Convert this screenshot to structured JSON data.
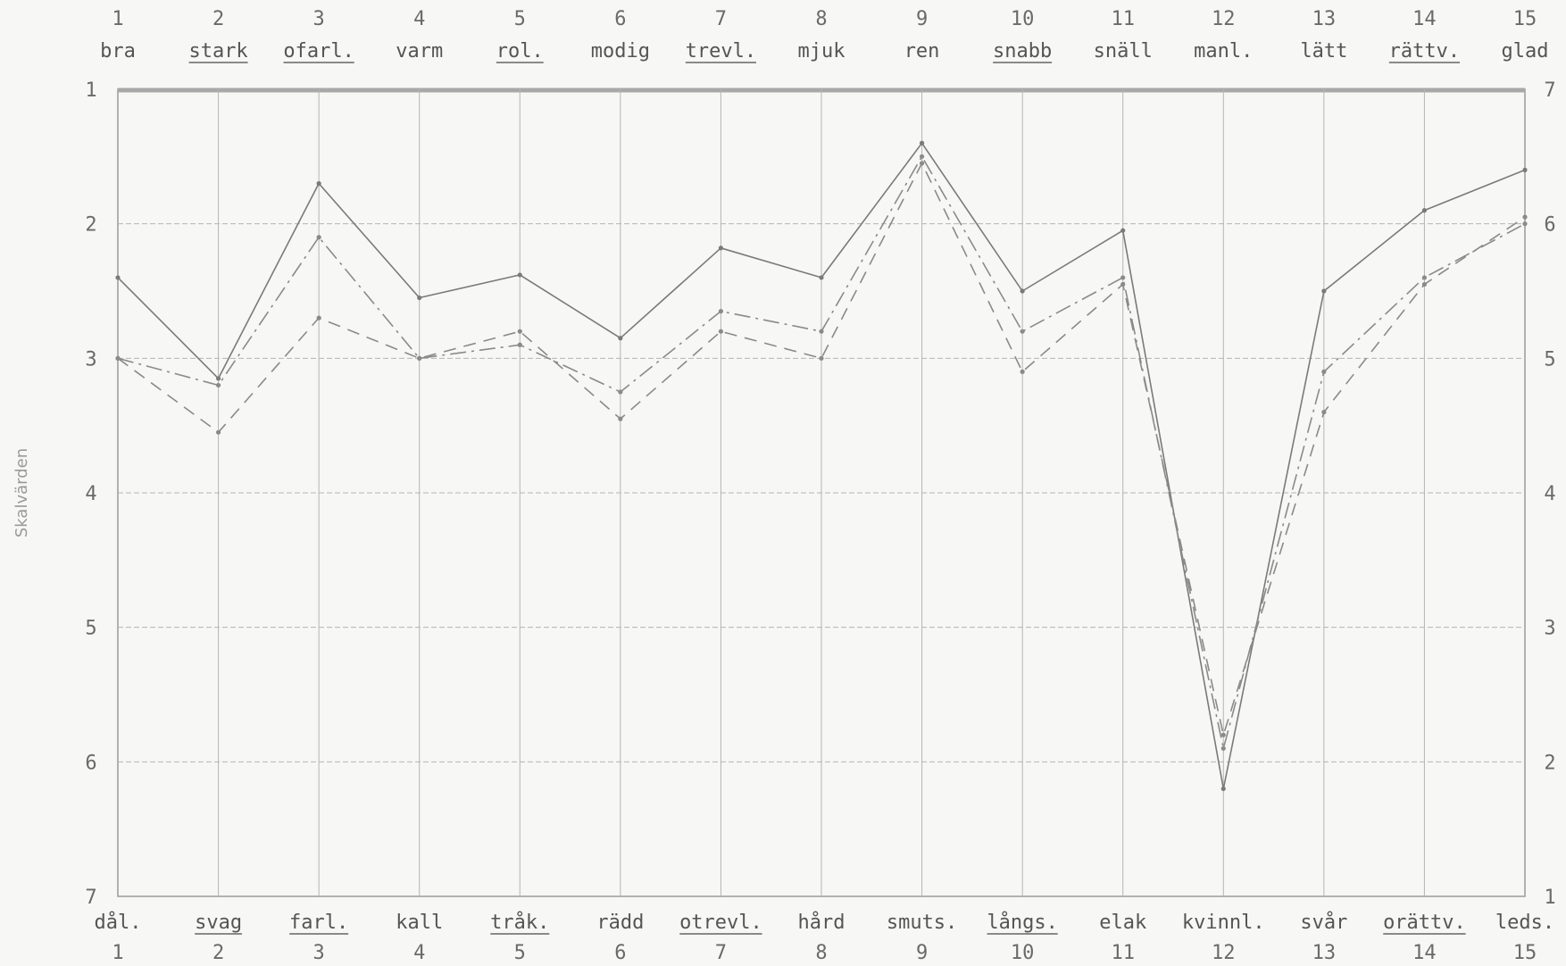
{
  "chart_data": {
    "type": "line",
    "categories": [
      "1",
      "2",
      "3",
      "4",
      "5",
      "6",
      "7",
      "8",
      "9",
      "10",
      "11",
      "12",
      "13",
      "14",
      "15"
    ],
    "top_words": [
      "bra",
      "stark",
      "ofarl.",
      "varm",
      "rol.",
      "modig",
      "trevl.",
      "mjuk",
      "ren",
      "snabb",
      "snäll",
      "manl.",
      "lätt",
      "rättv.",
      "glad"
    ],
    "bottom_words": [
      "dål.",
      "svag",
      "farl.",
      "kall",
      "tråk.",
      "rädd",
      "otrevl.",
      "hård",
      "smuts.",
      "långs.",
      "elak",
      "kvinnl.",
      "svår",
      "orättv.",
      "leds."
    ],
    "underlined": [
      2,
      3,
      5,
      7,
      10,
      14
    ],
    "ylabel": "Skalvärden",
    "left_ticks": [
      "1",
      "2",
      "3",
      "4",
      "5",
      "6",
      "7"
    ],
    "right_ticks": [
      "7",
      "6",
      "5",
      "4",
      "3",
      "2",
      "1"
    ],
    "ylim": [
      1,
      7
    ],
    "series": [
      {
        "style": "solid",
        "color": "#7a7a7a",
        "values": [
          2.4,
          3.15,
          1.7,
          2.55,
          2.38,
          2.85,
          2.18,
          2.4,
          1.4,
          2.5,
          2.05,
          6.2,
          2.5,
          1.9,
          1.6
        ]
      },
      {
        "style": "dash-dot",
        "color": "#8a8a8a",
        "values": [
          3.0,
          3.2,
          2.1,
          3.0,
          2.9,
          3.25,
          2.65,
          2.8,
          1.5,
          2.8,
          2.4,
          5.9,
          3.1,
          2.4,
          2.0
        ]
      },
      {
        "style": "dashed",
        "color": "#8a8a8a",
        "values": [
          3.0,
          3.55,
          2.7,
          3.0,
          2.8,
          3.45,
          2.8,
          3.0,
          1.55,
          3.1,
          2.45,
          5.8,
          3.4,
          2.45,
          1.95
        ]
      }
    ]
  }
}
